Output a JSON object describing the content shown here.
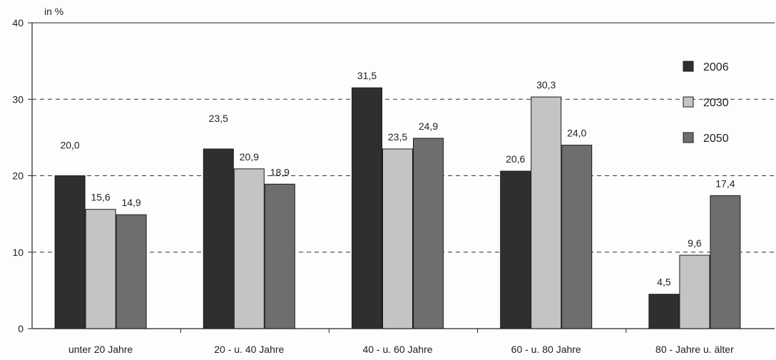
{
  "chart_data": {
    "type": "bar",
    "unit_label": "in %",
    "categories": [
      "unter 20 Jahre",
      "20 - u. 40 Jahre",
      "40 - u. 60 Jahre",
      "60 - u. 80 Jahre",
      "80 - Jahre u. älter"
    ],
    "series": [
      {
        "name": "2006",
        "color": "#2f2f2f",
        "values": [
          20.0,
          23.5,
          31.5,
          20.6,
          4.5
        ],
        "labels": [
          "20,0",
          "23,5",
          "31,5",
          "20,6",
          "4,5"
        ]
      },
      {
        "name": "2030",
        "color": "#c4c4c4",
        "values": [
          15.6,
          20.9,
          23.5,
          30.3,
          9.6
        ],
        "labels": [
          "15,6",
          "20,9",
          "23,5",
          "30,3",
          "9,6"
        ]
      },
      {
        "name": "2050",
        "color": "#6e6e6e",
        "values": [
          14.9,
          18.9,
          24.9,
          24.0,
          17.4
        ],
        "labels": [
          "14,9",
          "18,9",
          "24,9",
          "24,0",
          "17,4"
        ]
      }
    ],
    "yticks": [
      0,
      10,
      20,
      30,
      40
    ],
    "ylim": [
      0,
      40
    ],
    "grid": true,
    "legend_position": "right"
  }
}
